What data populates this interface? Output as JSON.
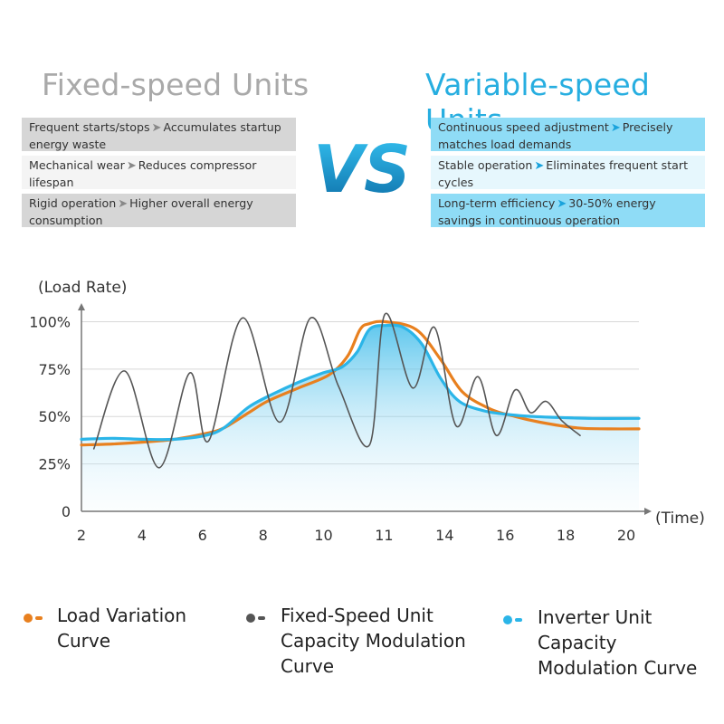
{
  "headings": {
    "left": "Fixed-speed Units",
    "right": "Variable-speed Units"
  },
  "vs_label": "VS",
  "comparison": {
    "left": [
      {
        "before": "Frequent starts/stops",
        "after": "Accumulates startup energy waste"
      },
      {
        "before": "Mechanical wear",
        "after": "Reduces compressor lifespan"
      },
      {
        "before": "Rigid operation",
        "after": "Higher overall energy consumption"
      }
    ],
    "right": [
      {
        "before": "Continuous speed adjustment",
        "after": "Precisely matches load demands"
      },
      {
        "before": "Stable operation",
        "after": "Eliminates frequent start cycles"
      },
      {
        "before": "Long-term efficiency",
        "after": "30-50% energy savings in continuous operation"
      }
    ]
  },
  "colors": {
    "load": "#e8801f",
    "fixed": "#555555",
    "inverter": "#2bb5e8",
    "grid": "#d8d8d8",
    "axis": "#777777"
  },
  "chart_data": {
    "type": "line",
    "ylabel": "(Load Rate)",
    "xlabel": "(Time)",
    "y_ticks": [
      "0",
      "25%",
      "50%",
      "75%",
      "100%"
    ],
    "y_tick_values": [
      0,
      25,
      50,
      75,
      100
    ],
    "x_ticks": [
      "2",
      "4",
      "6",
      "8",
      "10",
      "11",
      "14",
      "16",
      "18",
      "20"
    ],
    "ylim": [
      0,
      105
    ],
    "grid": true,
    "series": [
      {
        "name": "Load Variation Curve",
        "color": "#e8801f",
        "x": [
          2,
          3,
          4,
          5,
          6,
          6.6,
          7.4,
          8,
          9,
          10,
          10.6,
          11,
          11.3,
          11.8,
          12.8,
          13.6,
          14.3,
          15.2,
          16,
          16.8,
          18,
          19,
          20
        ],
        "y": [
          35,
          35.5,
          36.5,
          38,
          41,
          44,
          52,
          58,
          65,
          72,
          82,
          96,
          99,
          100,
          96,
          80,
          63,
          54,
          50,
          47,
          44,
          43.5,
          43.5
        ]
      },
      {
        "name": "Fixed-Speed Unit Capacity Modulation Curve",
        "color": "#555555",
        "x": [
          2.4,
          3.4,
          4.5,
          5.5,
          6.1,
          7.2,
          8.4,
          9.4,
          10.3,
          11.3,
          11.8,
          12.7,
          13.4,
          14.1,
          14.8,
          15.4,
          16,
          16.5,
          17,
          17.5,
          18.1
        ],
        "y": [
          33,
          74,
          23,
          73,
          37,
          102,
          47,
          102,
          66,
          35,
          104,
          65,
          97,
          45,
          71,
          40,
          64,
          52,
          58,
          48,
          40
        ]
      },
      {
        "name": "Inverter Unit Capacity Modulation Curve",
        "color": "#2bb5e8",
        "x": [
          2,
          3,
          4,
          5,
          6,
          6.6,
          7.4,
          8.2,
          9,
          9.8,
          10.4,
          10.9,
          11.3,
          11.8,
          12.4,
          13,
          13.6,
          14.2,
          15,
          15.8,
          16.6,
          17.4,
          18.5,
          20
        ],
        "y": [
          38,
          38.5,
          38,
          38,
          40,
          44,
          55,
          62,
          68,
          73,
          76,
          84,
          96,
          98,
          97,
          88,
          70,
          58,
          53,
          51,
          50,
          49.5,
          49,
          49
        ]
      }
    ]
  },
  "legend": [
    {
      "label": "Load Variation Curve",
      "color": "#e8801f"
    },
    {
      "label": "Fixed-Speed Unit Capacity Modulation Curve",
      "color": "#555555"
    },
    {
      "label": "Inverter Unit Capacity Modulation Curve",
      "color": "#2bb5e8"
    }
  ]
}
